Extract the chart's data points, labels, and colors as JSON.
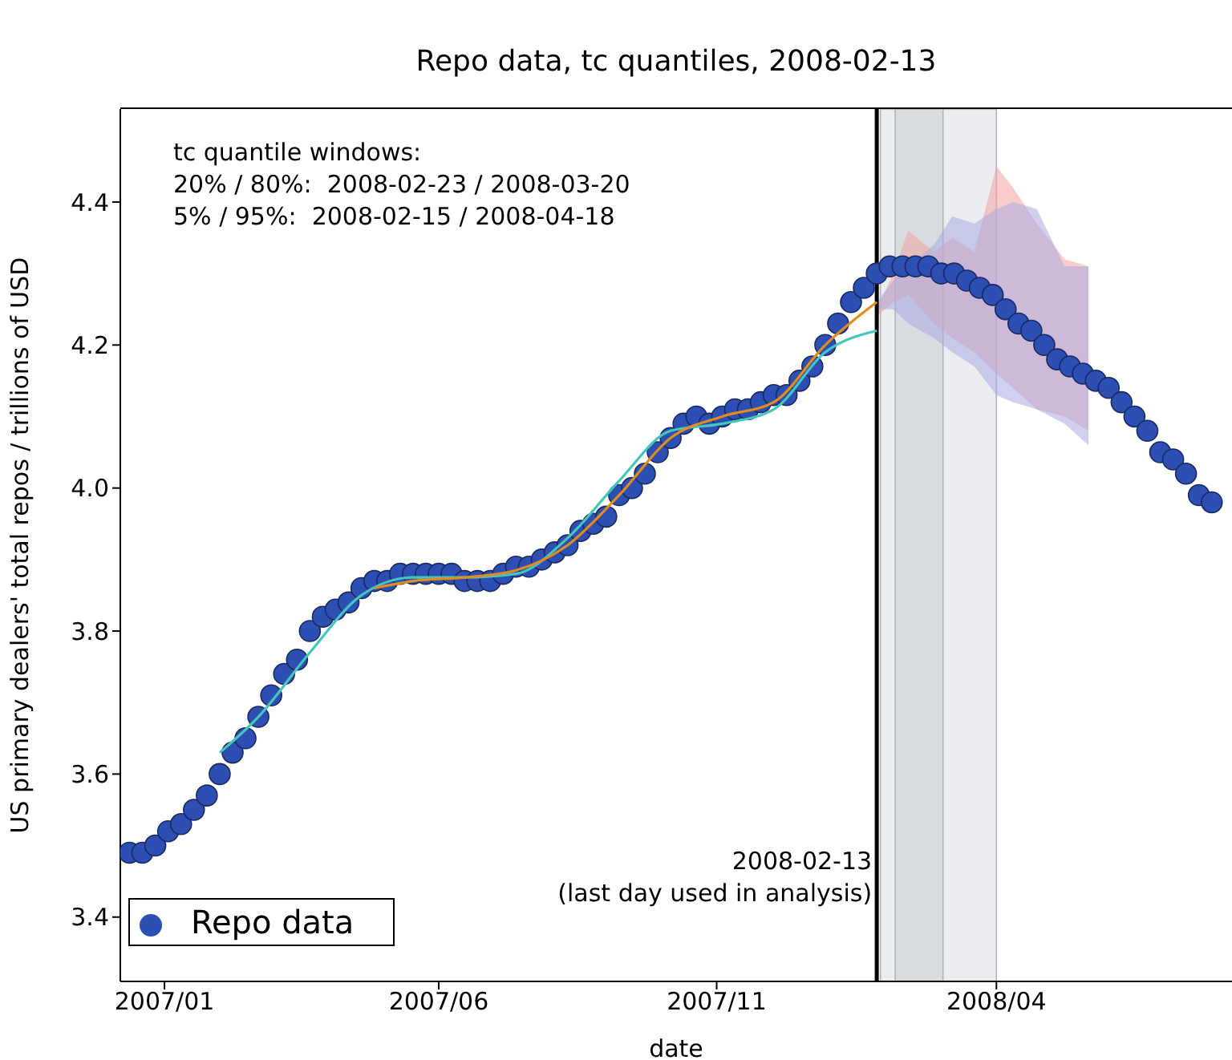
{
  "chart_data": {
    "type": "scatter",
    "title": "Repo data, tc quantiles, 2008-02-13",
    "xlabel": "date",
    "ylabel": "US primary dealers' total repos / trillions of USD",
    "annotations": [
      "tc quantile windows:",
      "20% / 80%:  2008-02-23 / 2008-03-20",
      "5% / 95%:  2008-02-15 / 2008-04-18"
    ],
    "xlim": [
      "2006-12-29",
      "2008-08-24"
    ],
    "xticks": [
      {
        "value": "2007-01-22",
        "label": "2007/01"
      },
      {
        "value": "2007-06-20",
        "label": "2007/06"
      },
      {
        "value": "2007-11-18",
        "label": "2007/11"
      },
      {
        "value": "2008-04-18",
        "label": "2008/04"
      }
    ],
    "ylim": [
      3.31,
      4.53
    ],
    "yticks": [
      3.4,
      3.6,
      3.8,
      {
        "value": 4,
        "label": "4.0"
      },
      4.2,
      4.4
    ],
    "legend": "bottom left",
    "ref_lines": [
      {
        "axis": "x",
        "value": "2008-02-13",
        "label": "2008-02-13\n(last day used in analysis)",
        "color": "#000000"
      }
    ],
    "bands": [
      {
        "axis": "x",
        "from": "2008-02-15",
        "to": "2008-04-18",
        "color": "#e6e9ee"
      },
      {
        "axis": "x",
        "from": "2008-02-23",
        "to": "2008-03-20",
        "color": "#d3d6db"
      }
    ],
    "series": [
      {
        "type": "line",
        "color": "#f4a3a3",
        "x": [
          "2008-02-13",
          "2008-02-22",
          "2008-03-01",
          "2008-03-15",
          "2008-03-25",
          "2008-04-06",
          "2008-04-18",
          "2008-04-27",
          "2008-05-10",
          "2008-05-25",
          "2008-06-07"
        ],
        "values": [
          null,
          null,
          null,
          null,
          null,
          null,
          null,
          null,
          null,
          null,
          null
        ],
        "lower": [
          4.24,
          4.26,
          4.27,
          4.23,
          4.21,
          4.19,
          4.16,
          4.14,
          4.11,
          4.1,
          4.08
        ],
        "upper": [
          4.25,
          4.3,
          4.36,
          4.33,
          4.35,
          4.33,
          4.45,
          4.42,
          4.37,
          4.32,
          4.31
        ]
      },
      {
        "type": "line",
        "color": "#a9abe2",
        "x": [
          "2008-02-13",
          "2008-02-22",
          "2008-03-01",
          "2008-03-15",
          "2008-03-25",
          "2008-04-06",
          "2008-04-18",
          "2008-04-27",
          "2008-05-10",
          "2008-05-25",
          "2008-06-07"
        ],
        "values": [
          null,
          null,
          null,
          null,
          null,
          null,
          null,
          null,
          null,
          null,
          null
        ],
        "lower": [
          4.25,
          4.25,
          4.23,
          4.21,
          4.19,
          4.17,
          4.13,
          4.12,
          4.11,
          4.09,
          4.06
        ],
        "upper": [
          4.26,
          4.29,
          4.31,
          4.34,
          4.38,
          4.37,
          4.39,
          4.4,
          4.39,
          4.31,
          4.31
        ]
      },
      {
        "type": "line",
        "color": "#44c6bd",
        "x": [
          "2007-02-21",
          "2007-03-14",
          "2007-04-11",
          "2007-05-09",
          "2007-06-06",
          "2007-07-04",
          "2007-08-01",
          "2007-08-29",
          "2007-09-26",
          "2007-10-24",
          "2007-11-21",
          "2007-12-19",
          "2008-01-16",
          "2008-02-13"
        ],
        "values": [
          3.63,
          3.68,
          3.77,
          3.85,
          3.875,
          3.875,
          3.88,
          3.93,
          4.01,
          4.08,
          4.09,
          4.11,
          4.19,
          4.22
        ]
      },
      {
        "type": "line",
        "color": "#e28c1e",
        "x": [
          "2007-05-16",
          "2007-06-06",
          "2007-07-04",
          "2007-08-01",
          "2007-08-29",
          "2007-09-26",
          "2007-10-24",
          "2007-11-21",
          "2007-12-19",
          "2008-01-16",
          "2008-02-13"
        ],
        "values": [
          3.86,
          3.87,
          3.875,
          3.885,
          3.92,
          3.99,
          4.07,
          4.1,
          4.12,
          4.2,
          4.26
        ]
      },
      {
        "name": "Repo data",
        "marker": "circle",
        "color": "#2d4fb4",
        "x": [
          "2007-01-03",
          "2007-01-10",
          "2007-01-17",
          "2007-01-24",
          "2007-01-31",
          "2007-02-07",
          "2007-02-14",
          "2007-02-21",
          "2007-02-28",
          "2007-03-07",
          "2007-03-14",
          "2007-03-21",
          "2007-03-28",
          "2007-04-04",
          "2007-04-11",
          "2007-04-18",
          "2007-04-25",
          "2007-05-02",
          "2007-05-09",
          "2007-05-16",
          "2007-05-23",
          "2007-05-30",
          "2007-06-06",
          "2007-06-13",
          "2007-06-20",
          "2007-06-27",
          "2007-07-04",
          "2007-07-11",
          "2007-07-18",
          "2007-07-25",
          "2007-08-01",
          "2007-08-08",
          "2007-08-15",
          "2007-08-22",
          "2007-08-29",
          "2007-09-05",
          "2007-09-12",
          "2007-09-19",
          "2007-09-26",
          "2007-10-03",
          "2007-10-10",
          "2007-10-17",
          "2007-10-24",
          "2007-10-31",
          "2007-11-07",
          "2007-11-14",
          "2007-11-21",
          "2007-11-28",
          "2007-12-05",
          "2007-12-12",
          "2007-12-19",
          "2007-12-26",
          "2008-01-02",
          "2008-01-09",
          "2008-01-16",
          "2008-01-23",
          "2008-01-30",
          "2008-02-06",
          "2008-02-13",
          "2008-02-20",
          "2008-02-27",
          "2008-03-05",
          "2008-03-12",
          "2008-03-19",
          "2008-03-26",
          "2008-04-02",
          "2008-04-09",
          "2008-04-16",
          "2008-04-23",
          "2008-04-30",
          "2008-05-07",
          "2008-05-14",
          "2008-05-21",
          "2008-05-28",
          "2008-06-04",
          "2008-06-11",
          "2008-06-18",
          "2008-06-25",
          "2008-07-02",
          "2008-07-09",
          "2008-07-16",
          "2008-07-23",
          "2008-07-30",
          "2008-08-06",
          "2008-08-13"
        ],
        "values": [
          3.49,
          3.49,
          3.5,
          3.52,
          3.53,
          3.55,
          3.57,
          3.6,
          3.63,
          3.65,
          3.68,
          3.71,
          3.74,
          3.76,
          3.8,
          3.82,
          3.83,
          3.84,
          3.86,
          3.87,
          3.87,
          3.88,
          3.88,
          3.88,
          3.88,
          3.88,
          3.87,
          3.87,
          3.87,
          3.88,
          3.89,
          3.89,
          3.9,
          3.91,
          3.92,
          3.94,
          3.95,
          3.96,
          3.99,
          4.0,
          4.02,
          4.05,
          4.07,
          4.09,
          4.1,
          4.09,
          4.1,
          4.11,
          4.11,
          4.12,
          4.13,
          4.13,
          4.15,
          4.17,
          4.2,
          4.23,
          4.26,
          4.28,
          4.3,
          4.31,
          4.31,
          4.31,
          4.31,
          4.3,
          4.3,
          4.29,
          4.28,
          4.27,
          4.25,
          4.23,
          4.22,
          4.2,
          4.18,
          4.17,
          4.16,
          4.15,
          4.14,
          4.12,
          4.1,
          4.08,
          4.05,
          4.04,
          4.02,
          3.99,
          3.98
        ]
      }
    ]
  }
}
